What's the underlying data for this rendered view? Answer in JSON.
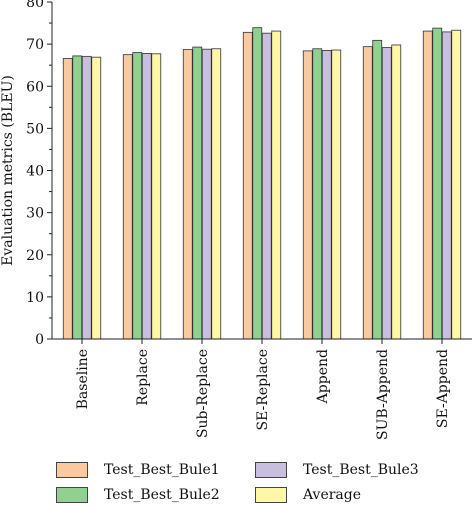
{
  "chart_data": {
    "type": "bar",
    "ylabel": "Evaluation metrics (BLEU)",
    "xlabel": "",
    "ylim": [
      0,
      80
    ],
    "yticks": [
      "0",
      "10",
      "20",
      "30",
      "40",
      "50",
      "60",
      "70",
      "80"
    ],
    "categories": [
      "Baseline",
      "Replace",
      "Sub-Replace",
      "SE-Replace",
      "Append",
      "SUB-Append",
      "SE-Append"
    ],
    "series": [
      {
        "name": "Test_Best_Bule1",
        "color": "#f9c9a0",
        "values": [
          66.6,
          67.5,
          68.7,
          72.8,
          68.4,
          69.4,
          73.1
        ]
      },
      {
        "name": "Test_Best_Bule2",
        "color": "#8fd18e",
        "values": [
          67.2,
          68.0,
          69.3,
          73.9,
          68.9,
          70.9,
          73.8
        ]
      },
      {
        "name": "Test_Best_Bule3",
        "color": "#c8bedf",
        "values": [
          67.1,
          67.8,
          68.8,
          72.6,
          68.5,
          69.2,
          72.9
        ]
      },
      {
        "name": "Average",
        "color": "#fdf7a6",
        "values": [
          66.9,
          67.7,
          68.9,
          73.1,
          68.6,
          69.8,
          73.3
        ]
      }
    ],
    "legend_position": "bottom",
    "grid": false
  }
}
